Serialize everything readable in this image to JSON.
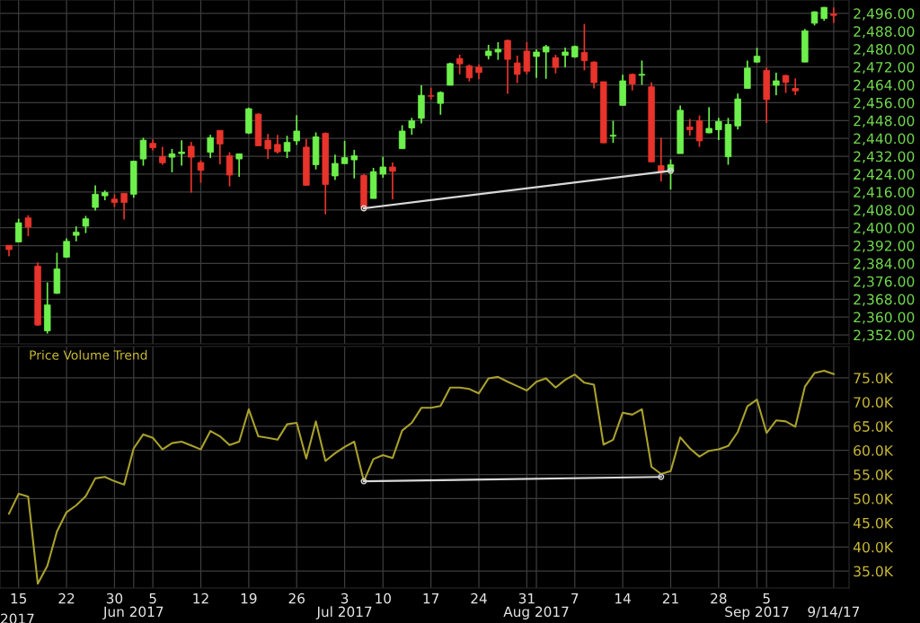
{
  "chart_data": [
    {
      "type": "candlestick",
      "ohlc": [
        [
          2392.1,
          2392.1,
          2387.2,
          2390.2
        ],
        [
          2393.6,
          2404.0,
          2393.6,
          2402.2
        ],
        [
          2404.4,
          2405.6,
          2396.2,
          2400.3
        ],
        [
          2382.8,
          2384.5,
          2356.0,
          2356.4
        ],
        [
          2353.8,
          2375.5,
          2352.6,
          2365.4
        ],
        [
          2370.6,
          2388.8,
          2370.4,
          2381.5
        ],
        [
          2386.8,
          2395.2,
          2386.5,
          2393.9
        ],
        [
          2396.6,
          2400.6,
          2393.9,
          2398.0
        ],
        [
          2400.7,
          2405.3,
          2397.6,
          2404.0
        ],
        [
          2409.1,
          2419.0,
          2407.7,
          2415.0
        ],
        [
          2414.3,
          2416.7,
          2412.3,
          2415.8
        ],
        [
          2412.8,
          2415.0,
          2409.3,
          2411.3
        ],
        [
          2415.4,
          2415.4,
          2403.7,
          2411.3
        ],
        [
          2415.0,
          2429.8,
          2413.4,
          2429.8
        ],
        [
          2430.8,
          2440.3,
          2427.8,
          2439.2
        ],
        [
          2437.8,
          2439.6,
          2434.6,
          2435.8
        ],
        [
          2431.9,
          2436.2,
          2428.2,
          2429.1
        ],
        [
          2431.6,
          2435.3,
          2424.8,
          2433.1
        ],
        [
          2433.2,
          2439.2,
          2427.8,
          2433.9
        ],
        [
          2436.5,
          2438.4,
          2415.7,
          2431.6
        ],
        [
          2429.2,
          2430.2,
          2420.1,
          2425.7
        ],
        [
          2433.8,
          2441.6,
          2431.2,
          2440.3
        ],
        [
          2443.6,
          2443.6,
          2428.4,
          2437.5
        ],
        [
          2432.2,
          2433.8,
          2418.5,
          2423.6
        ],
        [
          2430.8,
          2433.1,
          2422.8,
          2433.1
        ],
        [
          2442.4,
          2453.7,
          2442.0,
          2453.3
        ],
        [
          2450.9,
          2451.3,
          2436.7,
          2436.7
        ],
        [
          2439.2,
          2442.0,
          2430.8,
          2435.3
        ],
        [
          2437.3,
          2441.6,
          2433.2,
          2434.0
        ],
        [
          2434.2,
          2441.2,
          2431.2,
          2438.2
        ],
        [
          2438.9,
          2450.4,
          2437.1,
          2443.3
        ],
        [
          2436.1,
          2439.8,
          2419.0,
          2419.0
        ],
        [
          2428.2,
          2442.7,
          2426.1,
          2440.7
        ],
        [
          2442.3,
          2442.7,
          2406.0,
          2419.4
        ],
        [
          2423.2,
          2432.7,
          2421.4,
          2428.8
        ],
        [
          2428.7,
          2438.9,
          2428.7,
          2431.4
        ],
        [
          2430.4,
          2434.9,
          2422.1,
          2432.2
        ],
        [
          2423.4,
          2424.1,
          2408.0,
          2409.1
        ],
        [
          2413.1,
          2426.8,
          2413.1,
          2425.1
        ],
        [
          2424.0,
          2431.8,
          2422.4,
          2427.2
        ],
        [
          2427.2,
          2429.2,
          2412.7,
          2425.3
        ],
        [
          2435.4,
          2445.9,
          2435.4,
          2443.3
        ],
        [
          2444.7,
          2449.2,
          2441.6,
          2447.9
        ],
        [
          2449.0,
          2463.8,
          2446.7,
          2459.3
        ],
        [
          2459.1,
          2462.7,
          2457.4,
          2458.9
        ],
        [
          2455.7,
          2461.1,
          2450.6,
          2460.6
        ],
        [
          2463.8,
          2474.0,
          2463.8,
          2473.5
        ],
        [
          2475.8,
          2477.5,
          2468.7,
          2473.4
        ],
        [
          2472.5,
          2473.1,
          2465.5,
          2467.1
        ],
        [
          2471.9,
          2473.1,
          2466.5,
          2469.5
        ],
        [
          2477.1,
          2481.9,
          2475.4,
          2479.1
        ],
        [
          2478.7,
          2483.1,
          2475.2,
          2479.9
        ],
        [
          2483.9,
          2484.3,
          2460.0,
          2475.4
        ],
        [
          2473.8,
          2477.1,
          2464.8,
          2468.7
        ],
        [
          2479.1,
          2483.1,
          2468.7,
          2470.1
        ],
        [
          2476.7,
          2479.9,
          2467.1,
          2478.7
        ],
        [
          2478.7,
          2481.9,
          2466.7,
          2481.1
        ],
        [
          2476.2,
          2477.5,
          2469.1,
          2471.8
        ],
        [
          2477.2,
          2480.7,
          2471.8,
          2478.7
        ],
        [
          2476.5,
          2481.6,
          2476.1,
          2481.2
        ],
        [
          2478.5,
          2491.3,
          2470.5,
          2474.8
        ],
        [
          2474.2,
          2474.6,
          2462.4,
          2465.0
        ],
        [
          2465.4,
          2465.4,
          2438.0,
          2438.0
        ],
        [
          2441.0,
          2447.9,
          2438.0,
          2441.4
        ],
        [
          2454.8,
          2468.5,
          2454.8,
          2465.8
        ],
        [
          2468.7,
          2469.1,
          2461.5,
          2464.4
        ],
        [
          2468.3,
          2474.9,
          2464.0,
          2468.7
        ],
        [
          2463.1,
          2465.1,
          2429.5,
          2429.5
        ],
        [
          2427.8,
          2440.3,
          2420.7,
          2424.8
        ],
        [
          2425.2,
          2430.6,
          2417.1,
          2428.2
        ],
        [
          2433.2,
          2454.8,
          2433.2,
          2452.6
        ],
        [
          2445.1,
          2448.7,
          2441.3,
          2443.9
        ],
        [
          2447.9,
          2450.3,
          2436.2,
          2438.9
        ],
        [
          2442.5,
          2454.0,
          2442.3,
          2444.5
        ],
        [
          2443.9,
          2449.2,
          2439.3,
          2447.6
        ],
        [
          2431.8,
          2449.2,
          2428.2,
          2446.3
        ],
        [
          2445.6,
          2460.1,
          2444.0,
          2457.7
        ],
        [
          2462.4,
          2474.9,
          2462.4,
          2471.5
        ],
        [
          2474.2,
          2480.6,
          2473.8,
          2476.8
        ],
        [
          2470.5,
          2471.8,
          2446.9,
          2457.4
        ],
        [
          2463.8,
          2469.4,
          2459.4,
          2465.8
        ],
        [
          2468.2,
          2468.5,
          2460.4,
          2465.1
        ],
        [
          2462.4,
          2466.9,
          2459.4,
          2461.3
        ],
        [
          2474.2,
          2489.0,
          2474.2,
          2488.2
        ],
        [
          2491.6,
          2496.9,
          2490.6,
          2496.7
        ],
        [
          2493.7,
          2498.9,
          2492.7,
          2498.7
        ],
        [
          2495.7,
          2498.7,
          2491.7,
          2495.1
        ]
      ],
      "colors": [
        "#e8342b",
        "#6ef04c",
        "#e8342b",
        "#e8342b",
        "#6ef04c",
        "#6ef04c",
        "#6ef04c",
        "#6ef04c",
        "#6ef04c",
        "#6ef04c",
        "#6ef04c",
        "#e8342b",
        "#e8342b",
        "#6ef04c",
        "#6ef04c",
        "#e8342b",
        "#e8342b",
        "#6ef04c",
        "#6ef04c",
        "#e8342b",
        "#e8342b",
        "#6ef04c",
        "#e8342b",
        "#e8342b",
        "#6ef04c",
        "#6ef04c",
        "#e8342b",
        "#e8342b",
        "#e8342b",
        "#6ef04c",
        "#6ef04c",
        "#e8342b",
        "#6ef04c",
        "#e8342b",
        "#6ef04c",
        "#6ef04c",
        "#6ef04c",
        "#e8342b",
        "#6ef04c",
        "#6ef04c",
        "#e8342b",
        "#6ef04c",
        "#6ef04c",
        "#6ef04c",
        "#e8342b",
        "#6ef04c",
        "#6ef04c",
        "#e8342b",
        "#e8342b",
        "#e8342b",
        "#6ef04c",
        "#6ef04c",
        "#e8342b",
        "#e8342b",
        "#e8342b",
        "#6ef04c",
        "#6ef04c",
        "#e8342b",
        "#6ef04c",
        "#6ef04c",
        "#e8342b",
        "#e8342b",
        "#e8342b",
        "#6ef04c",
        "#6ef04c",
        "#e8342b",
        "#6ef04c",
        "#e8342b",
        "#e8342b",
        "#6ef04c",
        "#6ef04c",
        "#e8342b",
        "#e8342b",
        "#6ef04c",
        "#6ef04c",
        "#6ef04c",
        "#6ef04c",
        "#6ef04c",
        "#6ef04c",
        "#e8342b",
        "#6ef04c",
        "#e8342b",
        "#e8342b",
        "#6ef04c",
        "#6ef04c",
        "#6ef04c",
        "#e8342b"
      ],
      "series": [
        {
          "type": "line",
          "color": "#d8d8d8",
          "marker": "circle",
          "values": [
            null,
            null,
            null,
            null,
            null,
            null,
            null,
            null,
            null,
            null,
            null,
            null,
            null,
            null,
            null,
            null,
            null,
            null,
            null,
            null,
            null,
            null,
            null,
            null,
            null,
            null,
            null,
            null,
            null,
            null,
            null,
            null,
            null,
            null,
            null,
            null,
            null,
            2408.7,
            null,
            null,
            null,
            null,
            null,
            null,
            null,
            null,
            null,
            null,
            null,
            null,
            null,
            null,
            null,
            null,
            null,
            null,
            null,
            null,
            null,
            null,
            null,
            null,
            null,
            null,
            null,
            null,
            null,
            null,
            null,
            2425.5,
            null,
            null,
            null,
            null,
            null,
            null,
            null,
            null,
            null,
            null,
            null,
            null,
            null,
            null,
            null,
            null,
            null
          ]
        }
      ],
      "ylim": [
        2348,
        2502
      ],
      "yticks": [
        {
          "value": 2352,
          "label": "2,352.00"
        },
        {
          "value": 2360,
          "label": "2,360.00"
        },
        {
          "value": 2368,
          "label": "2,368.00"
        },
        {
          "value": 2376,
          "label": "2,376.00"
        },
        {
          "value": 2384,
          "label": "2,384.00"
        },
        {
          "value": 2392,
          "label": "2,392.00"
        },
        {
          "value": 2400,
          "label": "2,400.00"
        },
        {
          "value": 2408,
          "label": "2,408.00"
        },
        {
          "value": 2416,
          "label": "2,416.00"
        },
        {
          "value": 2424,
          "label": "2,424.00"
        },
        {
          "value": 2432,
          "label": "2,432.00"
        },
        {
          "value": 2440,
          "label": "2,440.00"
        },
        {
          "value": 2448,
          "label": "2,448.00"
        },
        {
          "value": 2456,
          "label": "2,456.00"
        },
        {
          "value": 2464,
          "label": "2,464.00"
        },
        {
          "value": 2472,
          "label": "2,472.00"
        },
        {
          "value": 2480,
          "label": "2,480.00"
        },
        {
          "value": 2488,
          "label": "2,488.00"
        },
        {
          "value": 2496,
          "label": "2,496.00"
        }
      ],
      "grid": true,
      "tick_labels": "y"
    },
    {
      "type": "line",
      "title": "Price Volume Trend",
      "categories": [
        null,
        "15",
        null,
        null,
        null,
        null,
        "22",
        null,
        null,
        null,
        null,
        "30",
        null,
        "\nJun 2017",
        null,
        "5",
        null,
        null,
        null,
        null,
        "12",
        null,
        null,
        null,
        null,
        "19",
        null,
        null,
        null,
        null,
        "26",
        null,
        null,
        null,
        null,
        "3\nJul 2017",
        null,
        null,
        null,
        "10",
        null,
        null,
        null,
        null,
        "17",
        null,
        null,
        null,
        null,
        "24",
        null,
        null,
        null,
        null,
        "31",
        "\nAug 2017",
        null,
        null,
        null,
        "7",
        null,
        null,
        null,
        null,
        "14",
        null,
        null,
        null,
        null,
        "21",
        null,
        null,
        null,
        null,
        "28",
        null,
        null,
        null,
        "\nSep 2017",
        "5",
        null,
        null,
        null,
        null,
        null,
        null,
        "\n9/14/17"
      ],
      "series": [
        {
          "color": "#a9a12c",
          "values": [
            46.9,
            51.0,
            50.4,
            32.4,
            36.1,
            43.2,
            47.2,
            48.6,
            50.5,
            54.2,
            54.5,
            53.6,
            52.9,
            60.4,
            63.3,
            62.6,
            60.2,
            61.5,
            61.8,
            61.0,
            60.2,
            64.0,
            62.9,
            61.1,
            61.8,
            68.5,
            62.9,
            62.6,
            62.2,
            65.4,
            65.7,
            58.3,
            66.0,
            57.8,
            59.4,
            60.7,
            61.8,
            53.6,
            58.2,
            59.0,
            58.4,
            64.1,
            65.7,
            68.8,
            68.8,
            69.2,
            73.0,
            73.0,
            72.7,
            71.8,
            74.9,
            75.2,
            74.2,
            73.3,
            72.4,
            74.2,
            74.9,
            73.0,
            74.6,
            75.7,
            74.0,
            73.6,
            61.2,
            62.2,
            67.8,
            67.4,
            68.5,
            56.6,
            55.1,
            55.7,
            62.7,
            60.4,
            58.7,
            59.9,
            60.2,
            60.9,
            63.8,
            69.1,
            70.5,
            63.6,
            66.2,
            66.0,
            64.9,
            73.2,
            76.0,
            76.5,
            75.8
          ]
        },
        {
          "type": "line",
          "color": "#d8d8d8",
          "marker": "circle",
          "values": [
            null,
            null,
            null,
            null,
            null,
            null,
            null,
            null,
            null,
            null,
            null,
            null,
            null,
            null,
            null,
            null,
            null,
            null,
            null,
            null,
            null,
            null,
            null,
            null,
            null,
            null,
            null,
            null,
            null,
            null,
            null,
            null,
            null,
            null,
            null,
            null,
            null,
            53.6,
            null,
            null,
            null,
            null,
            null,
            null,
            null,
            null,
            null,
            null,
            null,
            null,
            null,
            null,
            null,
            null,
            null,
            null,
            null,
            null,
            null,
            null,
            null,
            null,
            null,
            null,
            null,
            null,
            null,
            null,
            54.5,
            null,
            null,
            null,
            null,
            null,
            null,
            null,
            null,
            null,
            null,
            null,
            null,
            null,
            null,
            null,
            null,
            null,
            null
          ]
        }
      ],
      "ylim": [
        31.5,
        81.5
      ],
      "yticks": [
        {
          "value": 35,
          "label": "35.0K"
        },
        {
          "value": 40,
          "label": "40.0K"
        },
        {
          "value": 45,
          "label": "45.0K"
        },
        {
          "value": 50,
          "label": "50.0K"
        },
        {
          "value": 55,
          "label": "55.0K"
        },
        {
          "value": 60,
          "label": "60.0K"
        },
        {
          "value": 65,
          "label": "65.0K"
        },
        {
          "value": 70,
          "label": "70.0K"
        },
        {
          "value": 75,
          "label": "75.0K"
        }
      ],
      "grid": true,
      "annotations": [
        "2017"
      ]
    }
  ]
}
